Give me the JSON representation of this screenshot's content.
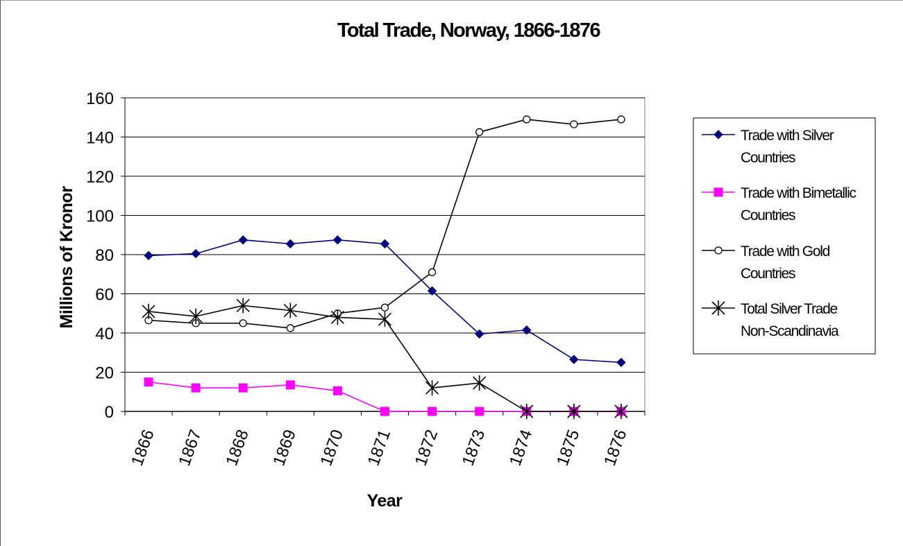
{
  "chart_data": {
    "type": "line",
    "title": "Total Trade, Norway, 1866-1876",
    "xlabel": "Year",
    "ylabel": "Millions of Kronor",
    "categories": [
      "1866",
      "1867",
      "1868",
      "1869",
      "1870",
      "1871",
      "1872",
      "1873",
      "1874",
      "1875",
      "1876"
    ],
    "ylim": [
      0,
      160
    ],
    "yticks": [
      "0",
      "20",
      "40",
      "60",
      "80",
      "100",
      "120",
      "140",
      "160"
    ],
    "grid": "horizontal",
    "legend_position": "right",
    "series": [
      {
        "name": "Trade with Silver Countries",
        "legend_lines": [
          "Trade with Silver",
          "Countries"
        ],
        "color": "#000080",
        "marker": "diamond",
        "values": [
          79.5,
          80.5,
          87.5,
          85.5,
          87.5,
          85.5,
          61.5,
          39.5,
          41.5,
          26.5,
          25
        ]
      },
      {
        "name": "Trade with Bimetallic Countries",
        "legend_lines": [
          "Trade with Bimetallic",
          "Countries"
        ],
        "color": "#ff00ff",
        "marker": "square",
        "values": [
          15,
          12,
          12,
          13.5,
          10.5,
          0,
          0,
          0,
          0,
          0,
          0
        ]
      },
      {
        "name": "Trade with Gold Countries",
        "legend_lines": [
          "Trade with Gold",
          "Countries"
        ],
        "color": "#000000",
        "marker": "circle",
        "values": [
          46.5,
          45,
          45,
          42.5,
          50,
          53,
          71,
          142.5,
          149,
          146.5,
          149
        ]
      },
      {
        "name": "Total Silver Trade Non-Scandinavia",
        "legend_lines": [
          "Total Silver Trade",
          "Non-Scandinavia"
        ],
        "color": "#000000",
        "marker": "star",
        "values": [
          51,
          48.5,
          54,
          51.5,
          48,
          47,
          12,
          14.5,
          0,
          0,
          0
        ]
      }
    ]
  }
}
